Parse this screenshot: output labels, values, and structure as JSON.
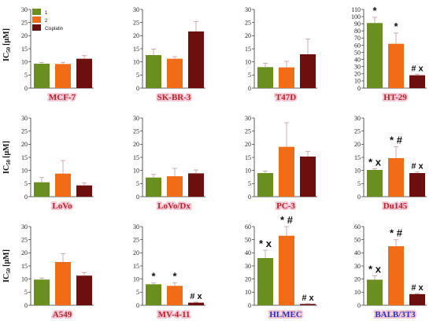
{
  "figure": {
    "y_axis_label_main": "IC",
    "y_axis_label_sub": "50",
    "y_axis_label_unit": "[μM]"
  },
  "legend": [
    {
      "label": "1",
      "color": "#6a8f1e"
    },
    {
      "label": "2",
      "color": "#f26b16"
    },
    {
      "label": "Cisplatin",
      "color": "#6e0f0f"
    }
  ],
  "colors": {
    "compound_1": "#6a8f1e",
    "compound_2": "#f26b16",
    "cisplatin": "#6e0f0f",
    "cancer_label": "#b5252a",
    "normal_label": "#2a35b5",
    "label_glow": "#f4c3d4"
  },
  "chart_data": [
    {
      "type": "bar",
      "title": "MCF-7",
      "title_color": "cancer",
      "ylim": [
        0,
        30
      ],
      "yticks": [
        0,
        5,
        10,
        15,
        20,
        25,
        30
      ],
      "categories": [
        "1",
        "2",
        "Cisplatin"
      ],
      "values": [
        9.3,
        9.2,
        11.2
      ],
      "errors": [
        0.5,
        0.6,
        1.2
      ],
      "annotations": [
        "",
        "",
        ""
      ],
      "grid": false
    },
    {
      "type": "bar",
      "title": "SK-BR-3",
      "title_color": "cancer",
      "ylim": [
        0,
        30
      ],
      "yticks": [
        0,
        5,
        10,
        15,
        20,
        25,
        30
      ],
      "categories": [
        "1",
        "2",
        "Cisplatin"
      ],
      "values": [
        12.6,
        11.2,
        21.6
      ],
      "errors": [
        2.3,
        0.8,
        3.8
      ],
      "annotations": [
        "",
        "",
        ""
      ],
      "grid": false
    },
    {
      "type": "bar",
      "title": "T47D",
      "title_color": "cancer",
      "ylim": [
        0,
        30
      ],
      "yticks": [
        0,
        5,
        10,
        15,
        20,
        25,
        30
      ],
      "categories": [
        "1",
        "2",
        "Cisplatin"
      ],
      "values": [
        8.0,
        7.9,
        12.9
      ],
      "errors": [
        1.5,
        2.3,
        5.8
      ],
      "annotations": [
        "",
        "",
        ""
      ],
      "grid": false
    },
    {
      "type": "bar",
      "title": "HT-29",
      "title_color": "cancer",
      "ylim": [
        0,
        110
      ],
      "yticks": [
        0,
        10,
        20,
        30,
        40,
        50,
        60,
        70,
        80,
        90,
        100,
        110
      ],
      "categories": [
        "1",
        "2",
        "Cisplatin"
      ],
      "values": [
        91,
        62,
        18
      ],
      "errors": [
        8,
        15,
        1.5
      ],
      "annotations": [
        "*",
        "*",
        "# x"
      ],
      "grid": false
    },
    {
      "type": "bar",
      "title": "LoVo",
      "title_color": "cancer",
      "ylim": [
        0,
        30
      ],
      "yticks": [
        0,
        5,
        10,
        15,
        20,
        25,
        30
      ],
      "categories": [
        "1",
        "2",
        "Cisplatin"
      ],
      "values": [
        5.5,
        8.8,
        4.3
      ],
      "errors": [
        1.8,
        5.0,
        1.0
      ],
      "annotations": [
        "",
        "",
        ""
      ],
      "grid": false
    },
    {
      "type": "bar",
      "title": "LoVo/Dx",
      "title_color": "cancer",
      "ylim": [
        0,
        30
      ],
      "yticks": [
        0,
        5,
        10,
        15,
        20,
        25,
        30
      ],
      "categories": [
        "1",
        "2",
        "Cisplatin"
      ],
      "values": [
        7.3,
        7.8,
        8.9
      ],
      "errors": [
        1.2,
        3.0,
        1.3
      ],
      "annotations": [
        "",
        "",
        ""
      ],
      "grid": false
    },
    {
      "type": "bar",
      "title": "PC-3",
      "title_color": "cancer",
      "ylim": [
        0,
        30
      ],
      "yticks": [
        0,
        5,
        10,
        15,
        20,
        25,
        30
      ],
      "categories": [
        "1",
        "2",
        "Cisplatin"
      ],
      "values": [
        9.0,
        19.0,
        15.3
      ],
      "errors": [
        0.8,
        9.2,
        2.0
      ],
      "annotations": [
        "",
        "",
        ""
      ],
      "grid": false
    },
    {
      "type": "bar",
      "title": "Du145",
      "title_color": "cancer",
      "ylim": [
        0,
        30
      ],
      "yticks": [
        0,
        5,
        10,
        15,
        20,
        25,
        30
      ],
      "categories": [
        "1",
        "2",
        "Cisplatin"
      ],
      "values": [
        10.2,
        14.7,
        9.0
      ],
      "errors": [
        0.5,
        4.4,
        0.4
      ],
      "annotations": [
        "* x",
        "* #",
        "# x"
      ],
      "grid": false
    },
    {
      "type": "bar",
      "title": "A549",
      "title_color": "cancer",
      "ylim": [
        0,
        30
      ],
      "yticks": [
        0,
        5,
        10,
        15,
        20,
        25,
        30
      ],
      "categories": [
        "1",
        "2",
        "Cisplatin"
      ],
      "values": [
        9.8,
        16.5,
        11.3
      ],
      "errors": [
        0.6,
        3.2,
        1.2
      ],
      "annotations": [
        "",
        "",
        ""
      ],
      "grid": false
    },
    {
      "type": "bar",
      "title": "MV-4-11",
      "title_color": "cancer",
      "ylim": [
        0,
        30
      ],
      "yticks": [
        0,
        5,
        10,
        15,
        20,
        25,
        30
      ],
      "categories": [
        "1",
        "2",
        "Cisplatin"
      ],
      "values": [
        8.0,
        7.4,
        1.0
      ],
      "errors": [
        0.5,
        1.2,
        0.2
      ],
      "annotations": [
        "*",
        "*",
        "# x"
      ],
      "grid": false
    },
    {
      "type": "bar",
      "title": "HLMEC",
      "title_color": "normal",
      "ylim": [
        0,
        60
      ],
      "yticks": [
        0,
        10,
        20,
        30,
        40,
        50,
        60
      ],
      "categories": [
        "1",
        "2",
        "Cisplatin"
      ],
      "values": [
        36,
        53,
        1.0
      ],
      "errors": [
        6,
        7,
        0.3
      ],
      "annotations": [
        "* x",
        "* #",
        "# x"
      ],
      "grid": false
    },
    {
      "type": "bar",
      "title": "BALB/3T3",
      "title_color": "normal",
      "ylim": [
        0,
        60
      ],
      "yticks": [
        0,
        10,
        20,
        30,
        40,
        50,
        60
      ],
      "categories": [
        "1",
        "2",
        "Cisplatin"
      ],
      "values": [
        19.5,
        45,
        8.5
      ],
      "errors": [
        3,
        5,
        0.5
      ],
      "annotations": [
        "* x",
        "* #",
        "# x"
      ],
      "grid": false
    }
  ]
}
